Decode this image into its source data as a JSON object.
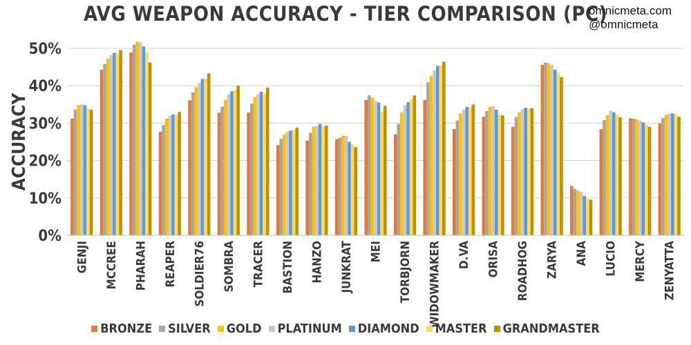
{
  "credits": {
    "site": "omnicmeta.com",
    "handle": "@omnicmeta"
  },
  "chart_data": {
    "type": "bar",
    "title": "AVG WEAPON ACCURACY - TIER COMPARISON (PC)",
    "ylabel": "ACCURACY",
    "xlabel": "",
    "ylim": [
      0,
      50
    ],
    "yticks": [
      0,
      10,
      20,
      30,
      40,
      50
    ],
    "ytick_labels": [
      "0%",
      "10%",
      "20%",
      "30%",
      "40%",
      "50%"
    ],
    "grid": true,
    "legend_position": "bottom",
    "categories": [
      "GENJI",
      "MCCREE",
      "PHARAH",
      "REAPER",
      "SOLDIER76",
      "SOMBRA",
      "TRACER",
      "BASTION",
      "HANZO",
      "JUNKRAT",
      "MEI",
      "TORBJORN",
      "WIDOWMAKER",
      "D.VA",
      "ORISA",
      "ROADHOG",
      "ZARYA",
      "ANA",
      "LUCIO",
      "MERCY",
      "ZENYATTA"
    ],
    "series": [
      {
        "name": "BRONZE",
        "color": "#e07b39",
        "values": [
          31.2,
          44.3,
          48.9,
          27.7,
          36.1,
          32.8,
          32.8,
          24.1,
          25.3,
          25.7,
          36.2,
          27.0,
          36.2,
          28.4,
          31.7,
          29.0,
          45.6,
          13.2,
          28.4,
          31.3,
          29.9
        ]
      },
      {
        "name": "SILVER",
        "color": "#a6a6a6",
        "values": [
          33.6,
          45.8,
          51.0,
          29.5,
          38.2,
          34.4,
          35.2,
          25.8,
          27.4,
          26.1,
          37.4,
          29.8,
          40.9,
          30.7,
          33.2,
          31.6,
          46.2,
          12.4,
          30.8,
          31.2,
          31.4
        ]
      },
      {
        "name": "GOLD",
        "color": "#ffc000",
        "values": [
          34.8,
          47.2,
          51.8,
          31.2,
          39.6,
          36.2,
          36.9,
          27.0,
          29.0,
          26.6,
          36.8,
          32.9,
          42.6,
          32.6,
          34.3,
          32.9,
          46.0,
          11.9,
          32.1,
          31.0,
          32.2
        ]
      },
      {
        "name": "PLATINUM",
        "color": "#c9c9c9",
        "values": [
          35.0,
          48.2,
          51.6,
          32.0,
          40.8,
          37.6,
          37.8,
          27.7,
          29.3,
          26.6,
          35.9,
          34.8,
          44.1,
          33.6,
          34.5,
          33.8,
          45.6,
          11.6,
          33.3,
          30.6,
          32.4
        ]
      },
      {
        "name": "DIAMOND",
        "color": "#5b9bd5",
        "values": [
          34.8,
          48.8,
          50.5,
          32.3,
          41.8,
          38.5,
          38.4,
          28.0,
          29.8,
          25.0,
          35.5,
          35.6,
          45.3,
          34.3,
          33.6,
          34.1,
          44.3,
          10.5,
          32.9,
          30.2,
          32.6
        ]
      },
      {
        "name": "MASTER",
        "color": "#ffd966",
        "values": [
          33.9,
          48.6,
          48.9,
          32.2,
          42.0,
          38.8,
          37.8,
          28.2,
          29.3,
          24.3,
          33.0,
          36.4,
          45.4,
          34.3,
          32.3,
          33.9,
          43.5,
          9.8,
          32.3,
          29.6,
          32.3
        ]
      },
      {
        "name": "GRANDMASTER",
        "color": "#bf9000",
        "values": [
          33.6,
          49.5,
          46.2,
          33.0,
          43.3,
          40.0,
          39.5,
          28.8,
          29.3,
          23.6,
          34.6,
          37.4,
          46.4,
          35.0,
          32.1,
          34.0,
          42.3,
          9.5,
          31.6,
          29.0,
          31.7
        ]
      }
    ]
  }
}
